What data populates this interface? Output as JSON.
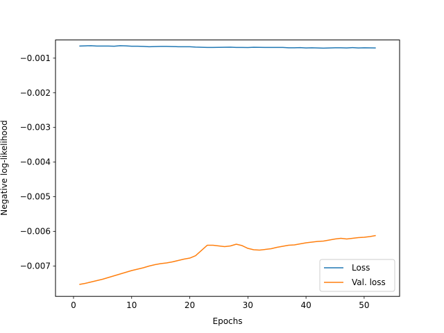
{
  "chart_data": {
    "type": "line",
    "title": "",
    "xlabel": "Epochs",
    "ylabel": "Negative log-likelihood",
    "xlim": [
      -3.1,
      56.1
    ],
    "ylim": [
      -0.007875,
      -0.000475
    ],
    "xticks": [
      0,
      10,
      20,
      30,
      40,
      50
    ],
    "yticks": [
      -0.007,
      -0.006,
      -0.005,
      -0.004,
      -0.003,
      -0.002,
      -0.001
    ],
    "ytick_labels": [
      "−0.007",
      "−0.006",
      "−0.005",
      "−0.004",
      "−0.003",
      "−0.002",
      "−0.001"
    ],
    "grid": false,
    "legend_position": "lower right",
    "series": [
      {
        "name": "Loss",
        "color": "#1f77b4",
        "x": [
          1,
          2,
          3,
          4,
          5,
          6,
          7,
          8,
          9,
          10,
          11,
          12,
          13,
          14,
          15,
          16,
          17,
          18,
          19,
          20,
          21,
          22,
          23,
          24,
          25,
          26,
          27,
          28,
          29,
          30,
          31,
          32,
          33,
          34,
          35,
          36,
          37,
          38,
          39,
          40,
          41,
          42,
          43,
          44,
          45,
          46,
          47,
          48,
          49,
          50,
          51,
          52
        ],
        "y": [
          -0.00065,
          -0.000645,
          -0.00064,
          -0.00065,
          -0.00065,
          -0.00065,
          -0.000655,
          -0.00064,
          -0.000645,
          -0.000655,
          -0.000655,
          -0.00066,
          -0.00067,
          -0.000665,
          -0.00066,
          -0.00066,
          -0.000665,
          -0.00067,
          -0.00067,
          -0.00067,
          -0.00068,
          -0.000685,
          -0.00069,
          -0.00069,
          -0.000688,
          -0.000685,
          -0.000683,
          -0.00069,
          -0.00069,
          -0.000693,
          -0.000685,
          -0.000688,
          -0.00069,
          -0.00069,
          -0.00069,
          -0.00069,
          -0.0007,
          -0.0007,
          -0.000695,
          -0.000705,
          -0.0007,
          -0.000705,
          -0.00071,
          -0.000705,
          -0.0007,
          -0.0007,
          -0.000705,
          -0.000695,
          -0.000705,
          -0.0007,
          -0.000703,
          -0.000705
        ]
      },
      {
        "name": "Val. loss",
        "color": "#ff7f0e",
        "x": [
          1,
          2,
          3,
          4,
          5,
          6,
          7,
          8,
          9,
          10,
          11,
          12,
          13,
          14,
          15,
          16,
          17,
          18,
          19,
          20,
          21,
          22,
          23,
          24,
          25,
          26,
          27,
          28,
          29,
          30,
          31,
          32,
          33,
          34,
          35,
          36,
          37,
          38,
          39,
          40,
          41,
          42,
          43,
          44,
          45,
          46,
          47,
          48,
          49,
          50,
          51,
          52
        ],
        "y": [
          -0.00753,
          -0.0075,
          -0.00746,
          -0.00742,
          -0.00738,
          -0.00733,
          -0.00728,
          -0.00723,
          -0.00718,
          -0.00713,
          -0.00709,
          -0.00705,
          -0.007,
          -0.00696,
          -0.00693,
          -0.00691,
          -0.00688,
          -0.00684,
          -0.0068,
          -0.00677,
          -0.0067,
          -0.00655,
          -0.0064,
          -0.0064,
          -0.00642,
          -0.00644,
          -0.00642,
          -0.00637,
          -0.00641,
          -0.00649,
          -0.00653,
          -0.00654,
          -0.00652,
          -0.0065,
          -0.00646,
          -0.00643,
          -0.0064,
          -0.00639,
          -0.00636,
          -0.00633,
          -0.00631,
          -0.00629,
          -0.00628,
          -0.00625,
          -0.00622,
          -0.0062,
          -0.00622,
          -0.0062,
          -0.00618,
          -0.00617,
          -0.00615,
          -0.00612
        ]
      }
    ]
  }
}
